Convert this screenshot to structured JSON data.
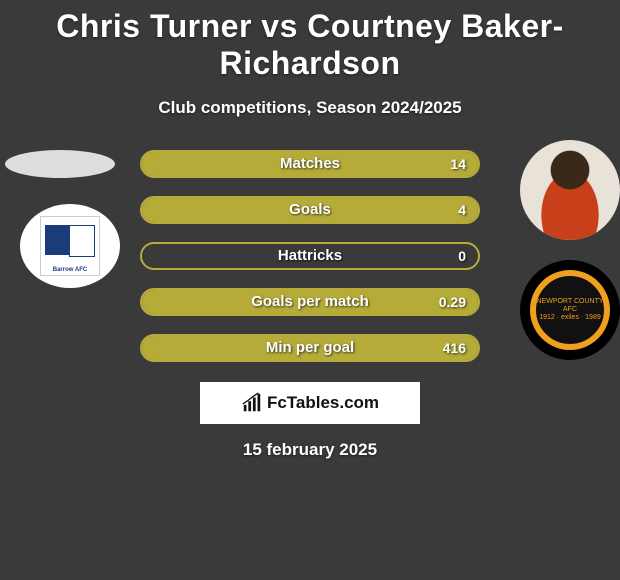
{
  "title": "Chris Turner vs Courtney Baker-Richardson",
  "subtitle": "Club competitions, Season 2024/2025",
  "date": "15 february 2025",
  "fctables_label": "FcTables.com",
  "colors": {
    "bar_border": "#b5ab39",
    "bar_fill_left": "#b5ab39",
    "bar_fill_right": "#b5ab39",
    "background": "#3a3a3a"
  },
  "stats": [
    {
      "label": "Matches",
      "right_value": "14",
      "left_pct": 0,
      "right_pct": 100
    },
    {
      "label": "Goals",
      "right_value": "4",
      "left_pct": 0,
      "right_pct": 100
    },
    {
      "label": "Hattricks",
      "right_value": "0",
      "left_pct": 0,
      "right_pct": 0
    },
    {
      "label": "Goals per match",
      "right_value": "0.29",
      "left_pct": 0,
      "right_pct": 100
    },
    {
      "label": "Min per goal",
      "right_value": "416",
      "left_pct": 0,
      "right_pct": 100
    }
  ],
  "left_club": "Barrow AFC",
  "right_club": "Newport County AFC",
  "newport_years": "1912 · exiles · 1989"
}
